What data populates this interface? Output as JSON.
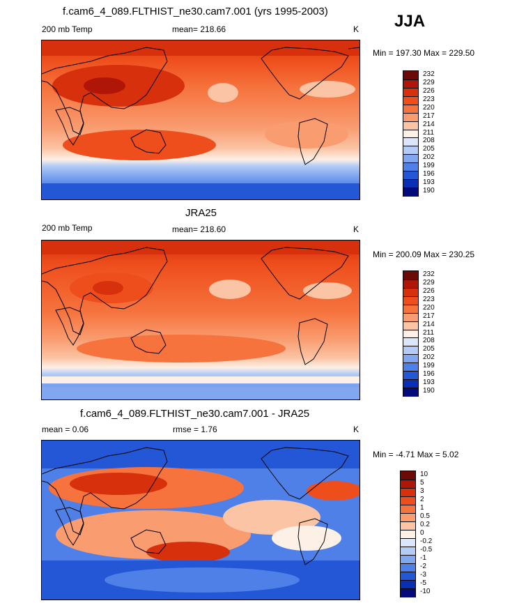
{
  "season_label": "JJA",
  "panels": [
    {
      "title": "f.cam6_4_089.FLTHIST_ne30.cam7.001 (yrs 1995-2003)",
      "left_label": "200 mb Temp",
      "center_label": "mean= 218.66",
      "units": "K",
      "minmax": "Min = 197.30 Max = 229.50",
      "levels": [
        "232",
        "229",
        "226",
        "223",
        "220",
        "217",
        "214",
        "211",
        "208",
        "205",
        "202",
        "199",
        "196",
        "193",
        "190"
      ],
      "colors": [
        "#6b0a07",
        "#b01607",
        "#d6300d",
        "#ee4e1c",
        "#f6733d",
        "#f99c70",
        "#fbc4a4",
        "#fdf0e6",
        "#dbe6fb",
        "#b3cbf5",
        "#80a7ef",
        "#4f80e8",
        "#2357d6",
        "#0a2fb4",
        "#030b7a"
      ]
    },
    {
      "title": "JRA25",
      "left_label": "200 mb Temp",
      "center_label": "mean= 218.60",
      "units": "K",
      "minmax": "Min = 200.09 Max = 230.25",
      "levels": [
        "232",
        "229",
        "226",
        "223",
        "220",
        "217",
        "214",
        "211",
        "208",
        "205",
        "202",
        "199",
        "196",
        "193",
        "190"
      ],
      "colors": [
        "#6b0a07",
        "#b01607",
        "#d6300d",
        "#ee4e1c",
        "#f6733d",
        "#f99c70",
        "#fbc4a4",
        "#fdf0e6",
        "#dbe6fb",
        "#b3cbf5",
        "#80a7ef",
        "#4f80e8",
        "#2357d6",
        "#0a2fb4",
        "#030b7a"
      ]
    },
    {
      "title": "f.cam6_4_089.FLTHIST_ne30.cam7.001 - JRA25",
      "left_label": "mean =   0.06",
      "center_label": "rmse =   1.76",
      "units": "K",
      "minmax": "Min =  -4.71 Max =   5.02",
      "levels": [
        "10",
        "5",
        "3",
        "2",
        "1",
        "0.5",
        "0.2",
        "0",
        "-0.2",
        "-0.5",
        "-1",
        "-2",
        "-3",
        "-5",
        "-10"
      ],
      "colors": [
        "#6b0a07",
        "#b01607",
        "#d6300d",
        "#ee4e1c",
        "#f6733d",
        "#f99c70",
        "#fbc4a4",
        "#fdf0e6",
        "#dbe6fb",
        "#b3cbf5",
        "#80a7ef",
        "#4f80e8",
        "#2357d6",
        "#0a2fb4",
        "#030b7a"
      ]
    }
  ]
}
